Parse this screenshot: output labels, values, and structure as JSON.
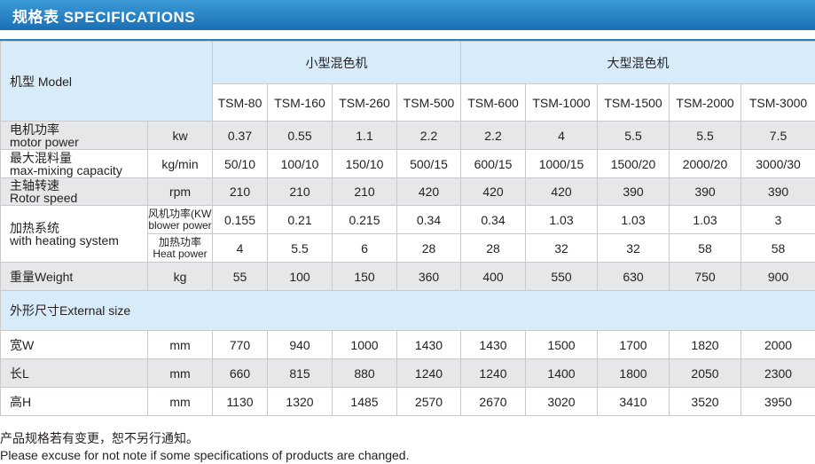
{
  "header": {
    "title": "规格表 SPECIFICATIONS"
  },
  "table": {
    "corner_label": "机型 Model",
    "group_small": "小型混色机",
    "group_large": "大型混色机",
    "models": [
      "TSM-80",
      "TSM-160",
      "TSM-260",
      "TSM-500",
      "TSM-600",
      "TSM-1000",
      "TSM-1500",
      "TSM-2000",
      "TSM-3000"
    ],
    "rows": {
      "motor": {
        "label_cn": "电机功率",
        "label_en": "motor power",
        "unit": "kw",
        "values": [
          "0.37",
          "0.55",
          "1.1",
          "2.2",
          "2.2",
          "4",
          "5.5",
          "5.5",
          "7.5"
        ]
      },
      "mixing": {
        "label_cn": "最大混料量",
        "label_en": "max-mixing capacity",
        "unit": "kg/min",
        "values": [
          "50/10",
          "100/10",
          "150/10",
          "500/15",
          "600/15",
          "1000/15",
          "1500/20",
          "2000/20",
          "3000/30"
        ]
      },
      "rotor": {
        "label_cn": "主轴转速",
        "label_en": "Rotor speed",
        "unit": "rpm",
        "values": [
          "210",
          "210",
          "210",
          "420",
          "420",
          "420",
          "390",
          "390",
          "390"
        ]
      },
      "heating": {
        "label_cn": "加热系统",
        "label_en": "with heating system"
      },
      "blower": {
        "unit_cn": "风机功率(KW)",
        "unit_en": "blower power",
        "values": [
          "0.155",
          "0.21",
          "0.215",
          "0.34",
          "0.34",
          "1.03",
          "1.03",
          "1.03",
          "3"
        ]
      },
      "heat": {
        "unit_cn": "加热功率",
        "unit_en": "Heat power",
        "values": [
          "4",
          "5.5",
          "6",
          "28",
          "28",
          "32",
          "32",
          "58",
          "58"
        ]
      },
      "weight": {
        "label": "重量Weight",
        "unit": "kg",
        "values": [
          "55",
          "100",
          "150",
          "360",
          "400",
          "550",
          "630",
          "750",
          "900"
        ]
      },
      "external": {
        "label": "外形尺寸External size"
      },
      "width": {
        "label": "宽W",
        "unit": "mm",
        "values": [
          "770",
          "940",
          "1000",
          "1430",
          "1430",
          "1500",
          "1700",
          "1820",
          "2000"
        ]
      },
      "length": {
        "label": "长L",
        "unit": "mm",
        "values": [
          "660",
          "815",
          "880",
          "1240",
          "1240",
          "1400",
          "1800",
          "2050",
          "2300"
        ]
      },
      "height": {
        "label": "高H",
        "unit": "mm",
        "values": [
          "1130",
          "1320",
          "1485",
          "2570",
          "2670",
          "3020",
          "3410",
          "3520",
          "3950"
        ]
      }
    }
  },
  "footer": {
    "note_cn": "产品规格若有变更，恕不另行通知。",
    "note_en": "Please excuse for not note if some specifications of products are changed."
  },
  "colors": {
    "header_blue": "#1b6fb5",
    "light_blue": "#d7ecf8",
    "gray": "#e6e7e8"
  }
}
